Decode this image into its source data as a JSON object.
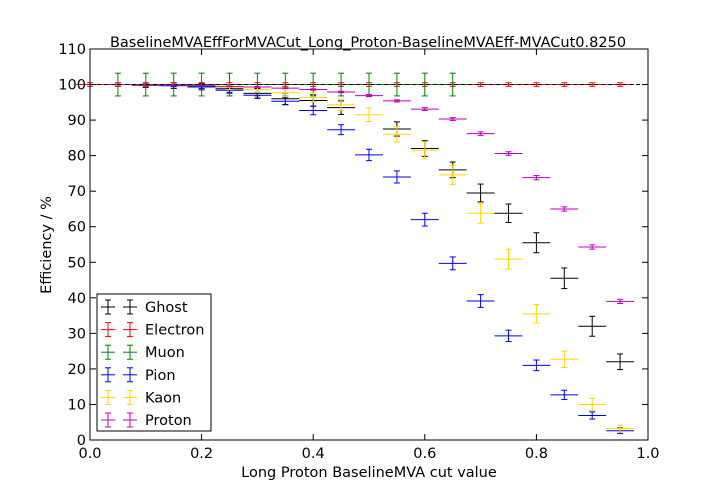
{
  "chart_data": {
    "type": "scatter",
    "title": "BaselineMVAEffForMVACut_Long_Proton-BaselineMVAEff-MVACut0.8250",
    "xlabel": "Long Proton BaselineMVA cut value",
    "ylabel": "Efficiency / %",
    "xlim": [
      0.0,
      1.0
    ],
    "ylim": [
      0,
      110
    ],
    "xticks": [
      "0.0",
      "0.2",
      "0.4",
      "0.6",
      "0.8",
      "1.0"
    ],
    "yticks": [
      "0",
      "10",
      "20",
      "30",
      "40",
      "50",
      "60",
      "70",
      "80",
      "90",
      "100",
      "110"
    ],
    "reference_line": 100,
    "grid": false,
    "legend_position": "lower-left",
    "series": [
      {
        "name": "Ghost",
        "color": "#000000",
        "x": [
          0.1,
          0.15,
          0.2,
          0.25,
          0.3,
          0.35,
          0.4,
          0.45,
          0.55,
          0.6,
          0.65,
          0.7,
          0.75,
          0.8,
          0.85,
          0.9,
          0.95
        ],
        "y": [
          99.8,
          99.7,
          99.4,
          98.8,
          97.5,
          96.0,
          95.5,
          93.5,
          87.5,
          82.0,
          76.0,
          69.5,
          63.8,
          55.5,
          45.5,
          32.0,
          22.0
        ],
        "yerr": [
          0.6,
          0.8,
          0.9,
          1.2,
          1.4,
          1.6,
          1.6,
          1.9,
          2.0,
          2.2,
          2.2,
          2.5,
          2.6,
          2.8,
          2.9,
          2.8,
          2.2
        ]
      },
      {
        "name": "Electron",
        "color": "#ff0000",
        "x": [
          0.0,
          0.05,
          0.1,
          0.15,
          0.2,
          0.25,
          0.3,
          0.35,
          0.4,
          0.45,
          0.5,
          0.55,
          0.6,
          0.65,
          0.7,
          0.75,
          0.8,
          0.85,
          0.9,
          0.95
        ],
        "y": [
          100,
          100,
          100,
          100,
          100,
          100,
          100,
          100,
          100,
          100,
          100,
          100,
          100,
          100,
          100,
          100,
          100,
          100,
          100,
          100
        ],
        "yerr": [
          0.5,
          0.5,
          0.5,
          0.5,
          0.5,
          0.5,
          0.5,
          0.5,
          0.5,
          0.5,
          0.5,
          0.5,
          0.5,
          0.5,
          0.5,
          0.5,
          0.5,
          0.5,
          0.5,
          0.5
        ]
      },
      {
        "name": "Muon",
        "color": "#008000",
        "x": [
          0.05,
          0.1,
          0.15,
          0.2,
          0.25,
          0.3,
          0.35,
          0.4,
          0.45,
          0.5,
          0.55,
          0.6,
          0.65
        ],
        "y": [
          100,
          100,
          100,
          100,
          100,
          100,
          100,
          100,
          100,
          100,
          100,
          100,
          100
        ],
        "yerr": [
          3.2,
          3.2,
          3.2,
          3.2,
          3.2,
          3.2,
          3.2,
          3.2,
          3.2,
          3.2,
          3.2,
          3.2,
          3.2
        ]
      },
      {
        "name": "Pion",
        "color": "#0000ff",
        "x": [
          0.15,
          0.2,
          0.25,
          0.3,
          0.35,
          0.4,
          0.45,
          0.5,
          0.55,
          0.6,
          0.65,
          0.7,
          0.75,
          0.8,
          0.85,
          0.9,
          0.95
        ],
        "y": [
          99.7,
          99.3,
          98.4,
          97.0,
          95.3,
          92.7,
          87.3,
          80.2,
          74.0,
          62.0,
          49.7,
          39.1,
          29.3,
          21.0,
          12.7,
          6.9,
          2.6
        ],
        "yerr": [
          0.3,
          0.4,
          0.6,
          0.8,
          1.0,
          1.2,
          1.4,
          1.6,
          1.7,
          1.8,
          1.8,
          1.8,
          1.6,
          1.5,
          1.3,
          1.0,
          0.8
        ]
      },
      {
        "name": "Kaon",
        "color": "#ffd700",
        "x": [
          0.25,
          0.3,
          0.35,
          0.4,
          0.45,
          0.5,
          0.55,
          0.6,
          0.65,
          0.7,
          0.75,
          0.8,
          0.85,
          0.9,
          0.95
        ],
        "y": [
          99.2,
          98.6,
          97.7,
          96.4,
          94.3,
          91.5,
          86.0,
          81.5,
          74.6,
          63.8,
          50.9,
          35.5,
          22.7,
          10.0,
          3.2
        ],
        "yerr": [
          0.6,
          0.8,
          1.0,
          1.3,
          1.6,
          1.9,
          2.2,
          2.4,
          2.7,
          2.8,
          2.8,
          2.6,
          2.3,
          1.7,
          1.0
        ]
      },
      {
        "name": "Proton",
        "color": "#bf00bf",
        "x": [
          0.05,
          0.1,
          0.15,
          0.2,
          0.25,
          0.3,
          0.35,
          0.4,
          0.45,
          0.5,
          0.55,
          0.6,
          0.65,
          0.7,
          0.75,
          0.8,
          0.85,
          0.9,
          0.95
        ],
        "y": [
          100,
          99.9,
          99.8,
          99.7,
          99.5,
          99.3,
          99.0,
          98.6,
          97.9,
          96.9,
          95.4,
          93.1,
          90.3,
          86.2,
          80.6,
          73.8,
          65.0,
          54.3,
          39.0
        ],
        "yerr": [
          0.1,
          0.1,
          0.1,
          0.1,
          0.1,
          0.1,
          0.1,
          0.2,
          0.2,
          0.3,
          0.3,
          0.4,
          0.4,
          0.5,
          0.5,
          0.6,
          0.6,
          0.6,
          0.6
        ]
      }
    ]
  }
}
